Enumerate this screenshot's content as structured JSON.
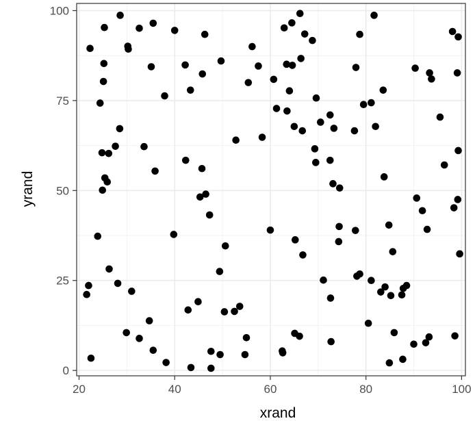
{
  "chart_data": {
    "type": "scatter",
    "title": "",
    "xlabel": "xrand",
    "ylabel": "yrand",
    "xlim": [
      19.5,
      100.8
    ],
    "ylim": [
      -1.5,
      102
    ],
    "x_ticks": [
      20,
      40,
      60,
      80,
      100
    ],
    "y_ticks": [
      0,
      25,
      50,
      75,
      100
    ],
    "x_minor_ticks": [
      30,
      50,
      70,
      90
    ],
    "y_minor_ticks": [
      12.5,
      37.5,
      62.5,
      87.5
    ],
    "grid": true,
    "theme": "bw",
    "point_color": "#000000",
    "points": [
      [
        21.6,
        21.1
      ],
      [
        22.0,
        23.6
      ],
      [
        22.3,
        89.5
      ],
      [
        22.5,
        3.4
      ],
      [
        23.9,
        37.3
      ],
      [
        24.4,
        74.3
      ],
      [
        24.8,
        60.5
      ],
      [
        24.9,
        50.1
      ],
      [
        25.1,
        80.3
      ],
      [
        25.2,
        85.3
      ],
      [
        25.3,
        95.3
      ],
      [
        25.4,
        53.5
      ],
      [
        25.9,
        52.4
      ],
      [
        26.2,
        60.3
      ],
      [
        26.3,
        28.2
      ],
      [
        27.6,
        62.3
      ],
      [
        28.1,
        24.2
      ],
      [
        28.5,
        67.2
      ],
      [
        28.6,
        98.7
      ],
      [
        29.9,
        10.5
      ],
      [
        30.2,
        90.1
      ],
      [
        30.3,
        89.3
      ],
      [
        31.0,
        22.0
      ],
      [
        32.6,
        95.1
      ],
      [
        32.6,
        8.9
      ],
      [
        33.6,
        62.2
      ],
      [
        34.7,
        13.8
      ],
      [
        35.1,
        84.4
      ],
      [
        35.5,
        96.5
      ],
      [
        35.5,
        5.6
      ],
      [
        35.9,
        55.4
      ],
      [
        37.9,
        76.3
      ],
      [
        38.2,
        2.2
      ],
      [
        39.8,
        37.8
      ],
      [
        40.0,
        94.5
      ],
      [
        42.2,
        84.9
      ],
      [
        42.3,
        58.4
      ],
      [
        42.8,
        16.8
      ],
      [
        43.3,
        77.9
      ],
      [
        43.4,
        0.8
      ],
      [
        44.9,
        19.1
      ],
      [
        45.3,
        48.2
      ],
      [
        45.7,
        56.1
      ],
      [
        45.8,
        82.4
      ],
      [
        46.3,
        93.4
      ],
      [
        46.5,
        49.0
      ],
      [
        47.3,
        43.2
      ],
      [
        47.6,
        5.3
      ],
      [
        47.6,
        0.6
      ],
      [
        49.4,
        27.5
      ],
      [
        49.5,
        4.4
      ],
      [
        49.7,
        86.0
      ],
      [
        50.4,
        16.3
      ],
      [
        50.6,
        34.6
      ],
      [
        52.5,
        16.4
      ],
      [
        52.8,
        64.0
      ],
      [
        53.6,
        17.8
      ],
      [
        54.7,
        4.4
      ],
      [
        55.0,
        9.1
      ],
      [
        55.4,
        80.0
      ],
      [
        56.2,
        90.0
      ],
      [
        57.5,
        84.6
      ],
      [
        58.3,
        64.8
      ],
      [
        60.0,
        39.0
      ],
      [
        60.7,
        80.9
      ],
      [
        61.3,
        72.8
      ],
      [
        62.5,
        5.4
      ],
      [
        62.6,
        4.9
      ],
      [
        62.9,
        95.2
      ],
      [
        63.4,
        85.1
      ],
      [
        63.5,
        72.1
      ],
      [
        64.0,
        77.7
      ],
      [
        64.5,
        96.6
      ],
      [
        64.6,
        84.8
      ],
      [
        65.0,
        67.8
      ],
      [
        65.1,
        10.3
      ],
      [
        65.2,
        36.3
      ],
      [
        66.1,
        9.5
      ],
      [
        66.2,
        99.2
      ],
      [
        66.4,
        86.7
      ],
      [
        66.7,
        66.6
      ],
      [
        66.8,
        32.1
      ],
      [
        67.2,
        93.5
      ],
      [
        68.8,
        91.7
      ],
      [
        69.3,
        61.6
      ],
      [
        69.5,
        57.8
      ],
      [
        69.6,
        75.7
      ],
      [
        70.5,
        69.0
      ],
      [
        71.1,
        25.1
      ],
      [
        72.5,
        71.0
      ],
      [
        72.5,
        58.4
      ],
      [
        72.6,
        20.1
      ],
      [
        72.7,
        8.0
      ],
      [
        73.1,
        51.9
      ],
      [
        73.3,
        67.3
      ],
      [
        74.3,
        35.8
      ],
      [
        74.4,
        40.0
      ],
      [
        74.5,
        50.7
      ],
      [
        77.6,
        66.6
      ],
      [
        77.8,
        38.9
      ],
      [
        77.9,
        84.2
      ],
      [
        78.1,
        26.2
      ],
      [
        78.7,
        26.8
      ],
      [
        78.7,
        93.4
      ],
      [
        79.5,
        73.9
      ],
      [
        80.5,
        13.1
      ],
      [
        81.1,
        74.4
      ],
      [
        81.1,
        25.0
      ],
      [
        81.7,
        98.7
      ],
      [
        82.0,
        67.8
      ],
      [
        83.1,
        21.8
      ],
      [
        83.6,
        77.9
      ],
      [
        83.8,
        53.8
      ],
      [
        84.0,
        23.2
      ],
      [
        84.8,
        40.4
      ],
      [
        84.9,
        2.1
      ],
      [
        85.2,
        20.8
      ],
      [
        85.6,
        33.0
      ],
      [
        85.9,
        10.5
      ],
      [
        87.5,
        21.0
      ],
      [
        87.7,
        3.1
      ],
      [
        87.8,
        22.8
      ],
      [
        88.5,
        23.6
      ],
      [
        90.0,
        7.3
      ],
      [
        90.3,
        84.0
      ],
      [
        90.6,
        47.9
      ],
      [
        91.8,
        44.4
      ],
      [
        92.5,
        7.7
      ],
      [
        92.8,
        39.2
      ],
      [
        93.2,
        9.3
      ],
      [
        93.3,
        82.7
      ],
      [
        93.7,
        81.0
      ],
      [
        95.5,
        70.4
      ],
      [
        96.4,
        57.1
      ],
      [
        98.1,
        94.2
      ],
      [
        98.4,
        45.2
      ],
      [
        98.6,
        9.6
      ],
      [
        99.1,
        82.7
      ],
      [
        99.2,
        47.5
      ],
      [
        99.3,
        61.1
      ],
      [
        99.3,
        92.7
      ],
      [
        99.6,
        32.4
      ]
    ]
  }
}
